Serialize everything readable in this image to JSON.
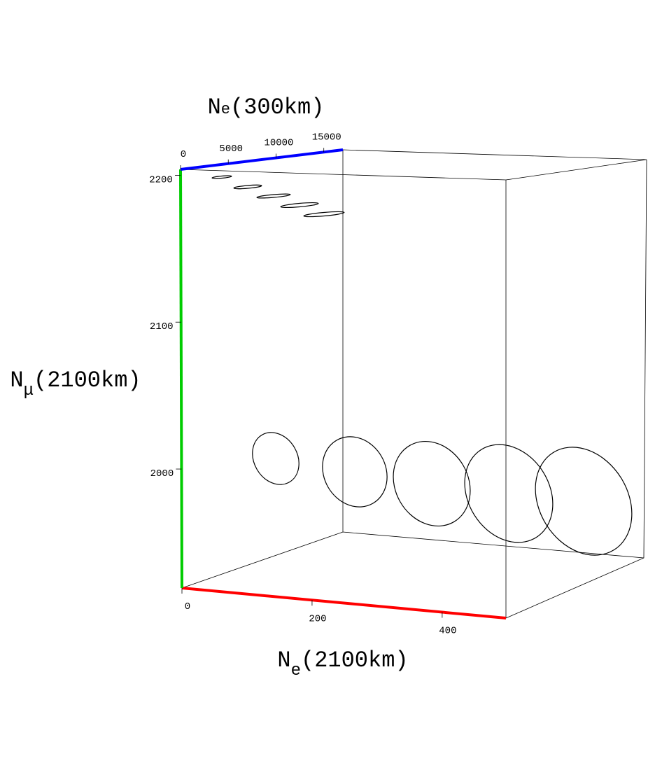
{
  "chart_data": {
    "type": "box3d",
    "x_axis": {
      "label": {
        "base": "N",
        "sub": "e",
        "rest": "(2100km)"
      },
      "color": "#ff0000",
      "xlim": [
        0,
        498
      ],
      "xticks": [
        0,
        200,
        400
      ]
    },
    "y_axis": {
      "label": {
        "base": "N",
        "sub": "μ",
        "rest": "(2100km)"
      },
      "color": "#00cc00",
      "ylim": [
        1919,
        2204
      ],
      "yticks": [
        2000,
        2100,
        2200
      ]
    },
    "z_axis": {
      "label": {
        "base": "N",
        "sub": "e",
        "rest": "(300km)"
      },
      "color": "#0000ff",
      "zlim": [
        0,
        17000
      ],
      "zticks": [
        0,
        5000,
        10000,
        15000
      ]
    }
  }
}
